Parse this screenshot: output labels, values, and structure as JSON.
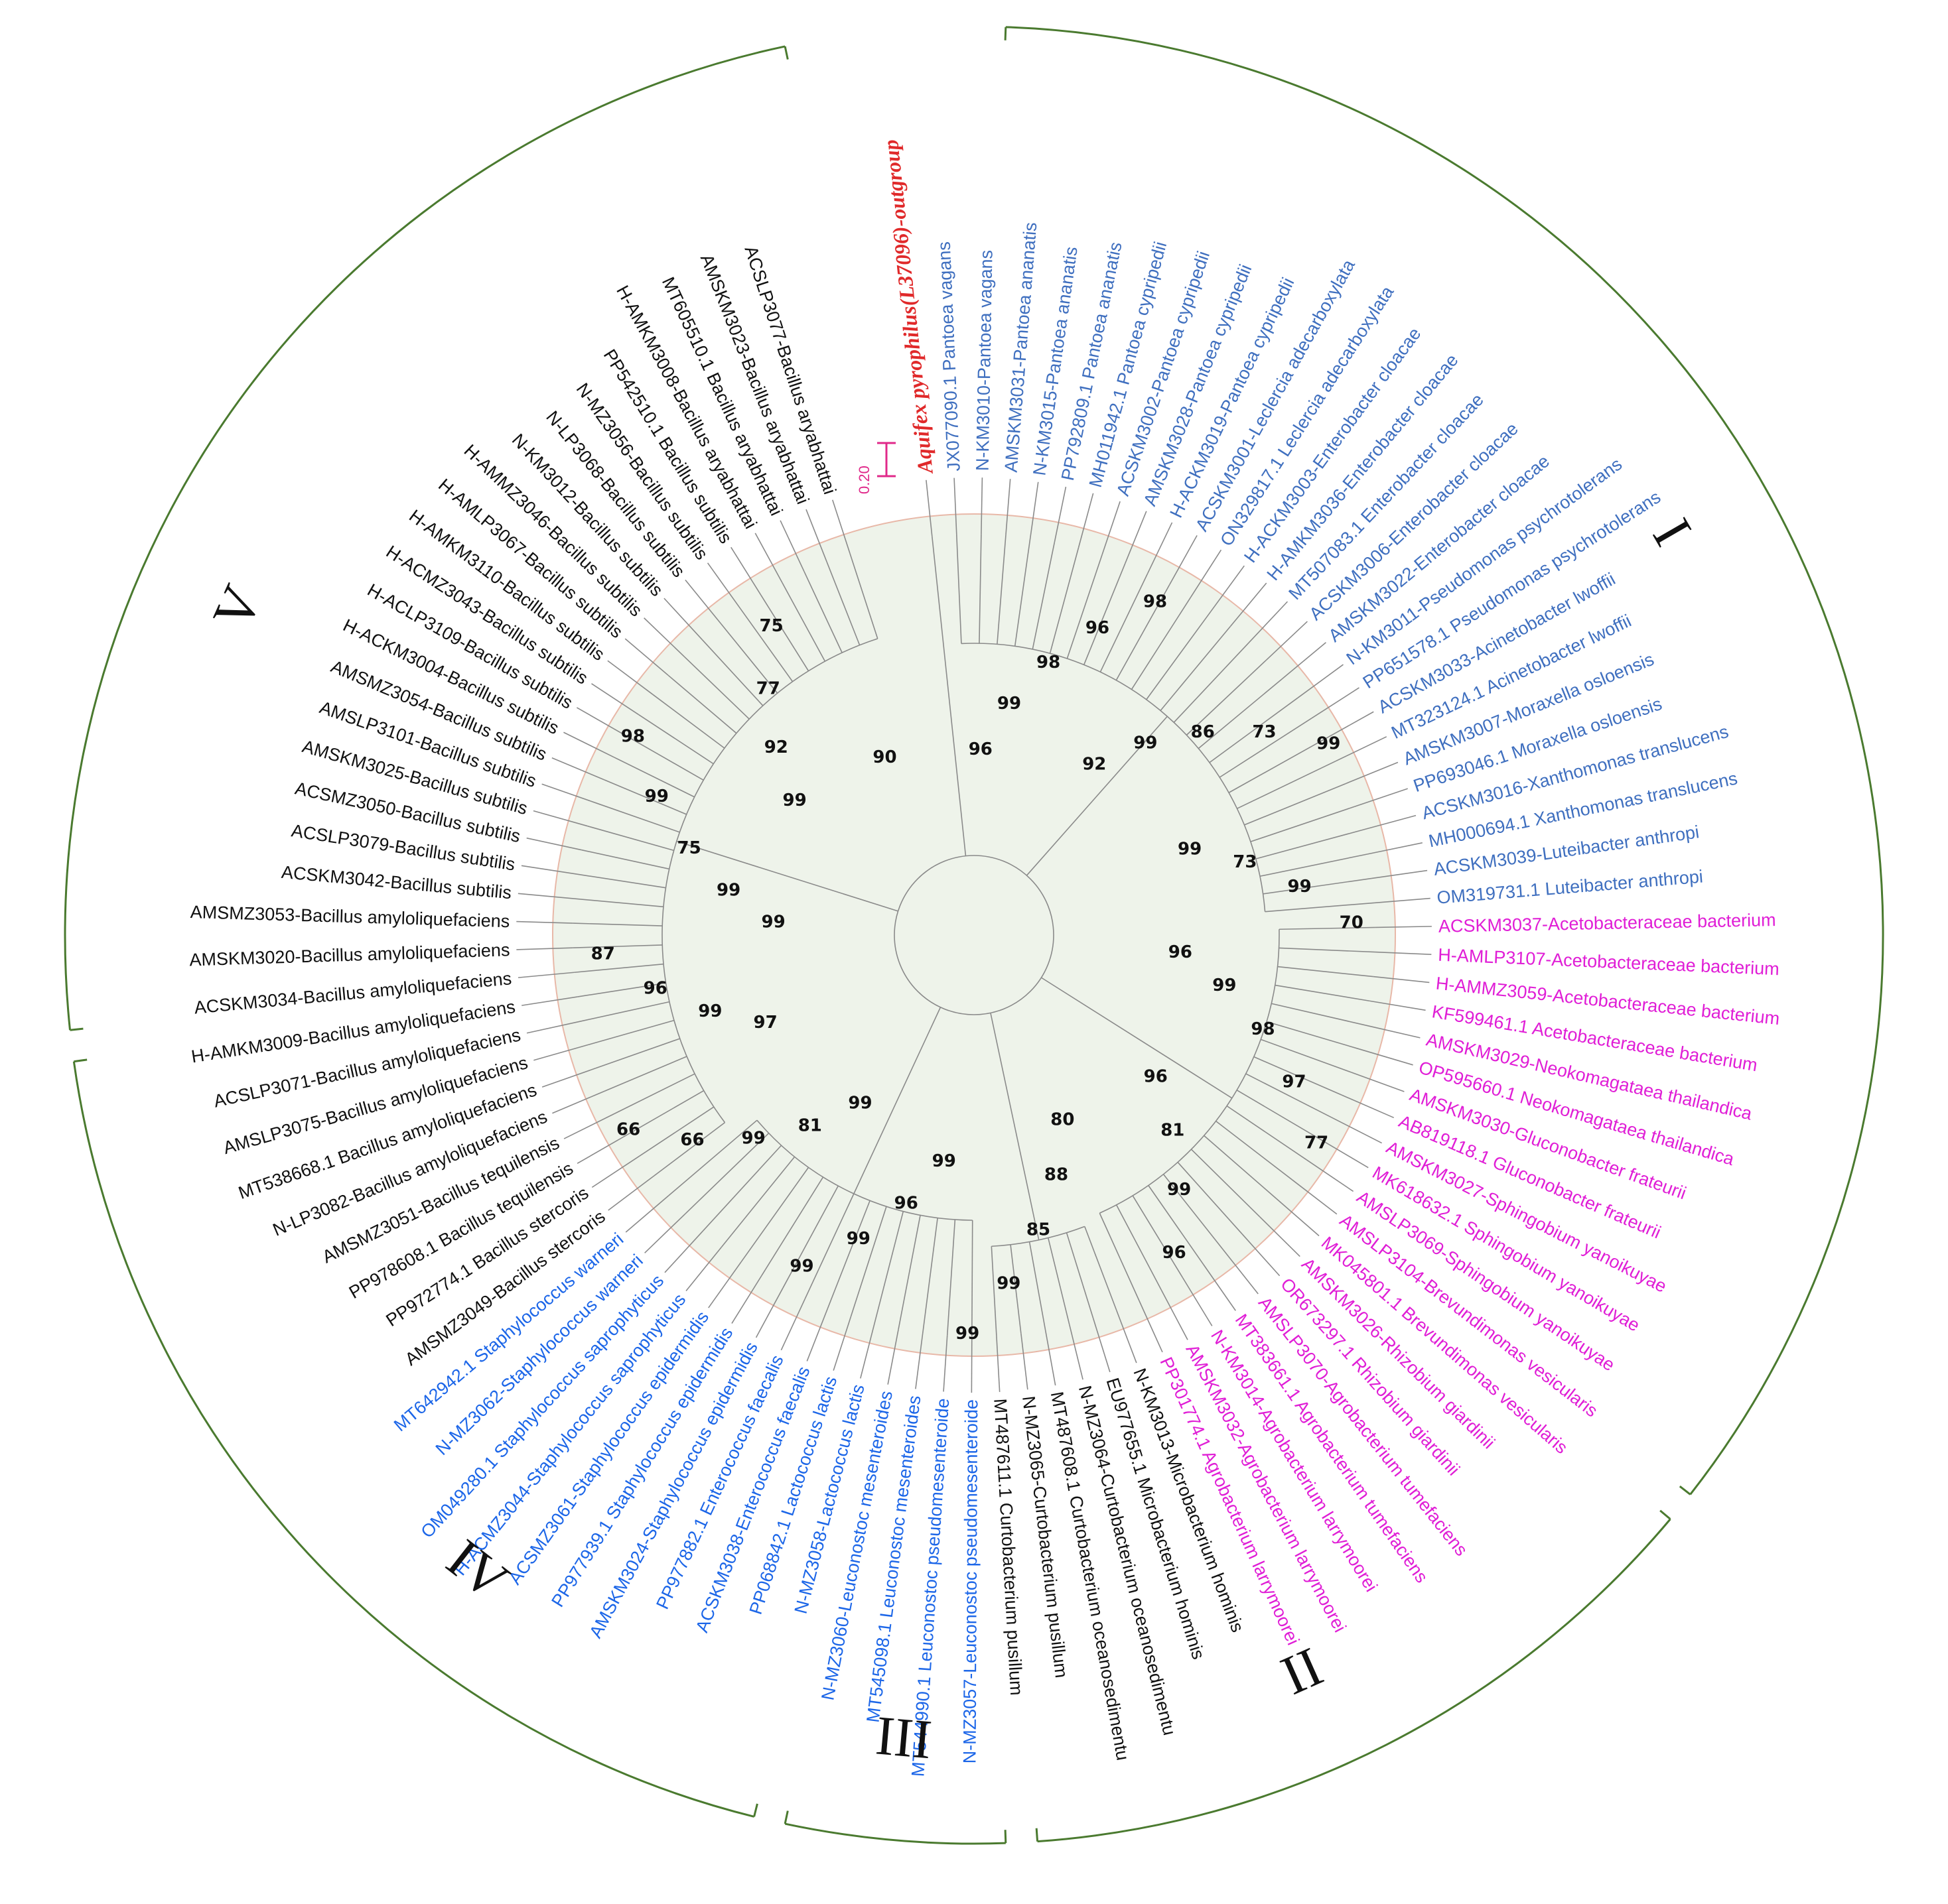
{
  "colors": {
    "outgroup": "#e0292a",
    "group_I": "#3f6fbf",
    "group_II": "#e01ed6",
    "group_III": "#111111",
    "group_IV": "#1c66e8",
    "group_V": "#111111",
    "clade_arc": "#4a7a2f",
    "inner_disc": "#eef3ea"
  },
  "scale_bar": {
    "label": "0.20"
  },
  "clade_labels": [
    "I",
    "II",
    "III",
    "IV",
    "V"
  ],
  "leaves": [
    {
      "text": "Aquifex pyrophilus(L37096)-outgroup",
      "group": "outgroup"
    },
    {
      "text": "JX077090.1 Pantoea vagans",
      "group": "I"
    },
    {
      "text": "N-KM3010-Pantoea vagans",
      "group": "I"
    },
    {
      "text": "AMSKM3031-Pantoea ananatis",
      "group": "I"
    },
    {
      "text": "N-KM3015-Pantoea ananatis",
      "group": "I"
    },
    {
      "text": "PP792809.1 Pantoea ananatis",
      "group": "I"
    },
    {
      "text": "MH011942.1 Pantoea cypripedii",
      "group": "I"
    },
    {
      "text": "ACSKM3002-Pantoea cypripedii",
      "group": "I"
    },
    {
      "text": "AMSKM3028-Pantoea cypripedii",
      "group": "I"
    },
    {
      "text": "H-ACKM3019-Pantoea cypripedii",
      "group": "I"
    },
    {
      "text": "ACSKM3001-Leclercia adecarboxylata",
      "group": "I"
    },
    {
      "text": "ON329817.1 Leclercia adecarboxylata",
      "group": "I"
    },
    {
      "text": "H-ACKM3003-Enterobacter cloacae",
      "group": "I"
    },
    {
      "text": "H-AMKM3036-Enterobacter cloacae",
      "group": "I"
    },
    {
      "text": "MT507083.1 Enterobacter cloacae",
      "group": "I"
    },
    {
      "text": "ACSKM3006-Enterobacter cloacae",
      "group": "I"
    },
    {
      "text": "AMSKM3022-Enterobacter cloacae",
      "group": "I"
    },
    {
      "text": "N-KM3011-Pseudomonas psychrotolerans",
      "group": "I"
    },
    {
      "text": "PP651578.1 Pseudomonas psychrotolerans",
      "group": "I"
    },
    {
      "text": "ACSKM3033-Acinetobacter lwoffii",
      "group": "I"
    },
    {
      "text": "MT323124.1 Acinetobacter lwoffii",
      "group": "I"
    },
    {
      "text": "AMSKM3007-Moraxella osloensis",
      "group": "I"
    },
    {
      "text": "PP693046.1 Moraxella osloensis",
      "group": "I"
    },
    {
      "text": "ACSKM3016-Xanthomonas translucens",
      "group": "I"
    },
    {
      "text": "MH000694.1 Xanthomonas translucens",
      "group": "I"
    },
    {
      "text": "ACSKM3039-Luteibacter anthropi",
      "group": "I"
    },
    {
      "text": "OM319731.1 Luteibacter anthropi",
      "group": "I"
    },
    {
      "text": "ACSKM3037-Acetobacteraceae bacterium",
      "group": "II"
    },
    {
      "text": "H-AMLP3107-Acetobacteraceae bacterium",
      "group": "II"
    },
    {
      "text": "H-AMMZ3059-Acetobacteraceae bacterium",
      "group": "II"
    },
    {
      "text": "KF599461.1 Acetobacteraceae bacterium",
      "group": "II"
    },
    {
      "text": "AMSKM3029-Neokomagataea thailandica",
      "group": "II"
    },
    {
      "text": "OP595660.1 Neokomagataea thailandica",
      "group": "II"
    },
    {
      "text": "AMSKM3030-Gluconobacter frateurii",
      "group": "II"
    },
    {
      "text": "AB819118.1 Gluconobacter frateurii",
      "group": "II"
    },
    {
      "text": "AMSKM3027-Sphingobium yanoikuyae",
      "group": "II"
    },
    {
      "text": "MK618632.1 Sphingobium yanoikuyae",
      "group": "II"
    },
    {
      "text": "AMSLP3069-Sphingobium yanoikuyae",
      "group": "II"
    },
    {
      "text": "AMSLP3104-Brevundimonas vesicularis",
      "group": "II"
    },
    {
      "text": "MK045801.1 Brevundimonas vesicularis",
      "group": "II"
    },
    {
      "text": "AMSKM3026-Rhizobium giardinii",
      "group": "II"
    },
    {
      "text": "OR673297.1 Rhizobium giardinii",
      "group": "II"
    },
    {
      "text": "AMSLP3070-Agrobacterium tumefaciens",
      "group": "II"
    },
    {
      "text": "MT383661.1 Agrobacterium tumefaciens",
      "group": "II"
    },
    {
      "text": "N-KM3014-Agrobacterium larrymoorei",
      "group": "II"
    },
    {
      "text": "AMSKM3032-Agrobacterium larrymoorei",
      "group": "II"
    },
    {
      "text": "PP301774.1 Agrobacterium larrymoorei",
      "group": "II"
    },
    {
      "text": "N-KM3013-Microbacterium hominis",
      "group": "III"
    },
    {
      "text": "EU977655.1 Microbacterium hominis",
      "group": "III"
    },
    {
      "text": "N-MZ3064-Curtobacterium oceanosedimentu",
      "group": "III"
    },
    {
      "text": "MT487608.1 Curtobacterium oceanosedimentu",
      "group": "III"
    },
    {
      "text": "N-MZ3065-Curtobacterium pusillum",
      "group": "III"
    },
    {
      "text": "MT487611.1 Curtobacterium pusillum",
      "group": "III"
    },
    {
      "text": "N-MZ3057-Leuconostoc pseudomesenteroide",
      "group": "IV"
    },
    {
      "text": "MT544990.1 Leuconostoc pseudomesenteroide",
      "group": "IV"
    },
    {
      "text": "MT545098.1 Leuconostoc mesenteroides",
      "group": "IV"
    },
    {
      "text": "N-MZ3060-Leuconostoc mesenteroides",
      "group": "IV"
    },
    {
      "text": "N-MZ3058-Lactococcus lactis",
      "group": "IV"
    },
    {
      "text": "PP068842.1 Lactococcus lactis",
      "group": "IV"
    },
    {
      "text": "ACSKM3038-Enterococcus faecalis",
      "group": "IV"
    },
    {
      "text": "PP977882.1 Enterococcus faecalis",
      "group": "IV"
    },
    {
      "text": "AMSKM3024-Staphylococcus epidermidis",
      "group": "IV"
    },
    {
      "text": "PP977939.1 Staphylococcus epidermidis",
      "group": "IV"
    },
    {
      "text": "ACSMZ3061-Staphylococcus epidermidis",
      "group": "IV"
    },
    {
      "text": "H-ACMZ3044-Staphylococcus saprophyticus",
      "group": "IV"
    },
    {
      "text": "OM049280.1 Staphylococcus saprophyticus",
      "group": "IV"
    },
    {
      "text": "N-MZ3062-Staphylococcus warneri",
      "group": "IV"
    },
    {
      "text": "MT642942.1 Staphylococcus warneri",
      "group": "IV"
    },
    {
      "text": "AMSMZ3049-Bacillus stercoris",
      "group": "V"
    },
    {
      "text": "PP972774.1 Bacillus stercoris",
      "group": "V"
    },
    {
      "text": "PP978608.1 Bacillus tequilensis",
      "group": "V"
    },
    {
      "text": "AMSMZ3051-Bacillus tequilensis",
      "group": "V"
    },
    {
      "text": "N-LP3082-Bacillus amyloliquefaciens",
      "group": "V"
    },
    {
      "text": "MT538668.1 Bacillus amyloliquefaciens",
      "group": "V"
    },
    {
      "text": "AMSLP3075-Bacillus amyloliquefaciens",
      "group": "V"
    },
    {
      "text": "ACSLP3071-Bacillus amyloliquefaciens",
      "group": "V"
    },
    {
      "text": "H-AMKM3009-Bacillus amyloliquefaciens",
      "group": "V"
    },
    {
      "text": "ACSKM3034-Bacillus amyloliquefaciens",
      "group": "V"
    },
    {
      "text": "AMSKM3020-Bacillus amyloliquefaciens",
      "group": "V"
    },
    {
      "text": "AMSMZ3053-Bacillus amyloliquefaciens",
      "group": "V"
    },
    {
      "text": "ACSKM3042-Bacillus subtilis",
      "group": "V"
    },
    {
      "text": "ACSLP3079-Bacillus subtilis",
      "group": "V"
    },
    {
      "text": "ACSMZ3050-Bacillus subtilis",
      "group": "V"
    },
    {
      "text": "AMSKM3025-Bacillus subtilis",
      "group": "V"
    },
    {
      "text": "AMSLP3101-Bacillus subtilis",
      "group": "V"
    },
    {
      "text": "AMSMZ3054-Bacillus subtilis",
      "group": "V"
    },
    {
      "text": "H-ACKM3004-Bacillus subtilis",
      "group": "V"
    },
    {
      "text": "H-ACLP3109-Bacillus subtilis",
      "group": "V"
    },
    {
      "text": "H-ACMZ3043-Bacillus subtilis",
      "group": "V"
    },
    {
      "text": "H-AMKM3110-Bacillus subtilis",
      "group": "V"
    },
    {
      "text": "H-AMLP3067-Bacillus subtilis",
      "group": "V"
    },
    {
      "text": "H-AMMZ3046-Bacillus subtilis",
      "group": "V"
    },
    {
      "text": "N-KM3012-Bacillus subtilis",
      "group": "V"
    },
    {
      "text": "N-LP3068-Bacillus subtilis",
      "group": "V"
    },
    {
      "text": "N-MZ3056-Bacillus subtilis",
      "group": "V"
    },
    {
      "text": "PP542510.1 Bacillus subtilis",
      "group": "V"
    },
    {
      "text": "H-AMKM3008-Bacillus aryabhattai",
      "group": "V"
    },
    {
      "text": "MT605510.1 Bacillus aryabhattai",
      "group": "V"
    },
    {
      "text": "AMSKM3023-Bacillus aryabhattai",
      "group": "V"
    },
    {
      "text": "ACSLP3077-Bacillus aryabhattai",
      "group": "V"
    }
  ],
  "bootstrap_values": [
    "96",
    "99",
    "98",
    "96",
    "98",
    "92",
    "99",
    "86",
    "73",
    "99",
    "99",
    "73",
    "99",
    "70",
    "96",
    "99",
    "98",
    "97",
    "77",
    "96",
    "81",
    "99",
    "96",
    "80",
    "88",
    "85",
    "99",
    "99",
    "99",
    "96",
    "99",
    "99",
    "99",
    "81",
    "99",
    "66",
    "66",
    "97",
    "99",
    "96",
    "87",
    "99",
    "99",
    "75",
    "99",
    "98",
    "99",
    "92",
    "77",
    "75",
    "90"
  ]
}
